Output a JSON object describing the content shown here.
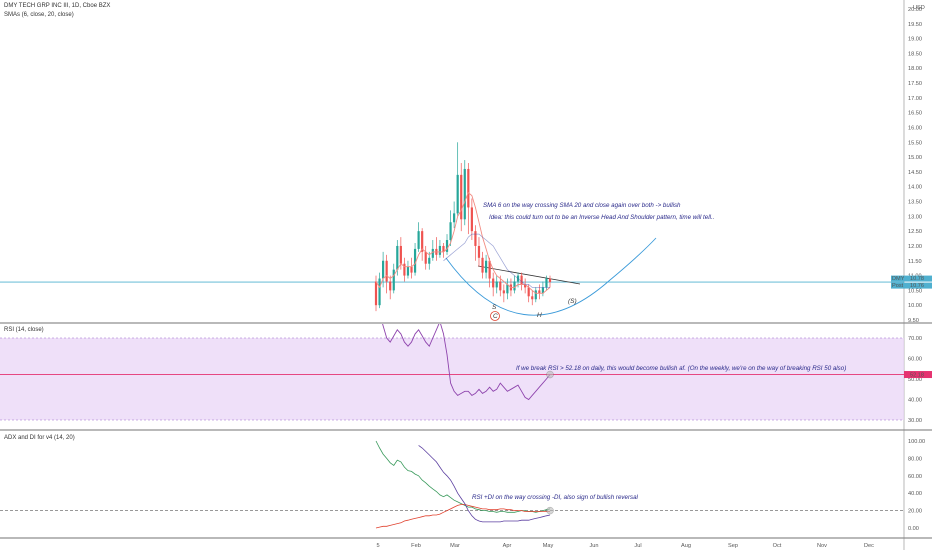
{
  "chart_data": [
    {
      "type": "line",
      "title": "DMY TECH GRP INC III, 1D, Cboe BZX",
      "subtitle": "SMAs (6, close, 20, close)",
      "currency": "USD",
      "ylim": [
        9.5,
        20.0
      ],
      "y_ticks": [
        "20.00",
        "19.50",
        "19.00",
        "18.50",
        "18.00",
        "17.50",
        "17.00",
        "16.50",
        "16.00",
        "15.50",
        "15.00",
        "14.50",
        "14.00",
        "13.50",
        "13.00",
        "12.50",
        "12.00",
        "11.50",
        "11.00",
        "10.50",
        "10.00",
        "9.50"
      ],
      "x_ticks": [
        "5",
        "Feb",
        "Mar",
        "Apr",
        "May",
        "Jun",
        "Jul",
        "Aug",
        "Sep",
        "Oct",
        "Nov",
        "Dec"
      ],
      "candles": [
        [
          10.8,
          10.0,
          11.0,
          9.8
        ],
        [
          10.0,
          10.9,
          11.1,
          9.9
        ],
        [
          10.9,
          11.5,
          11.8,
          10.6
        ],
        [
          11.5,
          10.8,
          11.7,
          10.4
        ],
        [
          10.8,
          10.5,
          11.0,
          10.2
        ],
        [
          10.5,
          11.2,
          11.4,
          10.4
        ],
        [
          11.2,
          12.0,
          12.2,
          11.0
        ],
        [
          12.0,
          11.4,
          12.3,
          11.2
        ],
        [
          11.4,
          11.0,
          11.6,
          10.8
        ],
        [
          11.0,
          11.3,
          11.5,
          10.9
        ],
        [
          11.3,
          11.1,
          11.6,
          10.9
        ],
        [
          11.1,
          11.9,
          12.1,
          11.0
        ],
        [
          11.9,
          12.5,
          12.8,
          11.8
        ],
        [
          12.5,
          11.8,
          12.6,
          11.5
        ],
        [
          11.8,
          11.4,
          12.0,
          11.2
        ],
        [
          11.4,
          11.6,
          11.8,
          11.2
        ],
        [
          11.6,
          11.9,
          12.2,
          11.5
        ],
        [
          11.9,
          11.7,
          12.3,
          11.5
        ],
        [
          11.7,
          12.0,
          12.2,
          11.6
        ],
        [
          12.0,
          11.8,
          12.1,
          11.6
        ],
        [
          11.8,
          12.2,
          12.4,
          11.7
        ],
        [
          12.2,
          12.8,
          13.2,
          12.0
        ],
        [
          12.8,
          13.1,
          13.5,
          12.6
        ],
        [
          13.1,
          14.4,
          15.5,
          13.0
        ],
        [
          14.4,
          12.9,
          14.8,
          12.5
        ],
        [
          12.9,
          14.6,
          14.9,
          12.7
        ],
        [
          14.6,
          13.3,
          14.8,
          12.4
        ],
        [
          13.3,
          12.5,
          13.6,
          12.2
        ],
        [
          12.5,
          12.0,
          12.7,
          11.5
        ],
        [
          12.0,
          11.6,
          12.3,
          11.3
        ],
        [
          11.6,
          11.1,
          11.8,
          10.9
        ],
        [
          11.1,
          11.5,
          11.7,
          10.9
        ],
        [
          11.5,
          10.9,
          11.6,
          10.6
        ],
        [
          10.9,
          10.6,
          11.1,
          10.3
        ],
        [
          10.6,
          10.8,
          11.0,
          10.4
        ],
        [
          10.8,
          10.5,
          11.0,
          10.3
        ],
        [
          10.5,
          10.4,
          10.7,
          10.1
        ],
        [
          10.4,
          10.7,
          10.9,
          10.2
        ],
        [
          10.7,
          10.5,
          10.9,
          10.3
        ],
        [
          10.5,
          10.8,
          11.0,
          10.4
        ],
        [
          10.8,
          11.0,
          11.1,
          10.6
        ],
        [
          11.0,
          10.7,
          11.1,
          10.5
        ],
        [
          10.7,
          10.6,
          10.9,
          10.4
        ],
        [
          10.6,
          10.3,
          10.7,
          10.1
        ],
        [
          10.3,
          10.2,
          10.5,
          10.0
        ],
        [
          10.2,
          10.5,
          10.6,
          10.1
        ],
        [
          10.5,
          10.4,
          10.7,
          10.2
        ],
        [
          10.4,
          10.6,
          10.8,
          10.3
        ],
        [
          10.6,
          10.9,
          11.0,
          10.5
        ],
        [
          10.9,
          10.78,
          11.0,
          10.6
        ]
      ],
      "sma6": [
        10.8,
        10.6,
        10.9,
        11.0,
        10.9,
        11.0,
        11.2,
        11.4,
        11.3,
        11.3,
        11.3,
        11.4,
        11.7,
        11.9,
        11.8,
        11.7,
        11.8,
        11.8,
        11.8,
        11.8,
        11.9,
        12.1,
        12.5,
        13.0,
        13.2,
        13.5,
        13.8,
        13.7,
        13.3,
        12.8,
        12.3,
        11.9,
        11.5,
        11.2,
        11.0,
        10.9,
        10.8,
        10.7,
        10.6,
        10.6,
        10.7,
        10.7,
        10.7,
        10.6,
        10.5,
        10.4,
        10.4,
        10.4,
        10.5,
        10.6
      ],
      "sma20": [
        null,
        null,
        null,
        null,
        null,
        null,
        null,
        null,
        null,
        null,
        null,
        null,
        null,
        null,
        null,
        null,
        null,
        null,
        null,
        11.5,
        11.6,
        11.7,
        11.8,
        11.9,
        12.0,
        12.1,
        12.3,
        12.4,
        12.4,
        12.4,
        12.3,
        12.2,
        12.1,
        12.0,
        11.8,
        11.6,
        11.4,
        11.2,
        11.1,
        11.0,
        10.9,
        10.8,
        10.7,
        10.7,
        10.6,
        10.6,
        10.6,
        10.6,
        10.6,
        10.6
      ],
      "horizontal_line": 10.78,
      "price_labels": [
        {
          "name": "DMYI",
          "value": "10.78"
        },
        {
          "name": "Post",
          "value": "10.76"
        }
      ],
      "annotations": [
        "SMA 6 on the way crossing SMA 20 and close again over both -> bullish",
        "Idea: this could turn out to be an Inverse Head And Shoulder pattern, time will tell..",
        "S",
        "H",
        "(S)",
        "C"
      ]
    },
    {
      "type": "line",
      "title": "RSI (14, close)",
      "ylim": [
        20,
        80
      ],
      "y_ticks": [
        "70.00",
        "60.00",
        "50.00",
        "40.00",
        "30.00"
      ],
      "band": [
        30,
        70
      ],
      "values": [
        84,
        82,
        76,
        70,
        68,
        71,
        74,
        72,
        68,
        66,
        68,
        72,
        74,
        71,
        68,
        66,
        70,
        74,
        78,
        72,
        62,
        48,
        44,
        42,
        43,
        44,
        44,
        42,
        43,
        45,
        43,
        44,
        46,
        44,
        45,
        48,
        46,
        44,
        45,
        46,
        47,
        44,
        41,
        40,
        42,
        44,
        46,
        48,
        50,
        52.18
      ],
      "horizontal_line": 52.18,
      "current_label": "52.18",
      "annotation": "If we break RSI > 52.18 on daily, this would become bullish af. (On the weekly, we're on the way of breaking RSI 50 also)"
    },
    {
      "type": "line",
      "title": "ADX and DI for v4 (14, 20)",
      "ylim": [
        -10,
        105
      ],
      "y_ticks": [
        "100.00",
        "80.00",
        "60.00",
        "40.00",
        "20.00",
        "0.00"
      ],
      "series": [
        {
          "name": "+DI",
          "color": "#3a9a5c",
          "values": [
            100,
            92,
            85,
            80,
            75,
            72,
            78,
            76,
            70,
            66,
            65,
            62,
            60,
            55,
            52,
            48,
            45,
            42,
            38,
            36,
            38,
            35,
            32,
            30,
            28,
            26,
            24,
            24,
            22,
            21,
            20,
            20,
            19,
            19,
            18,
            19,
            19,
            18,
            18,
            18,
            19,
            20,
            20,
            19,
            19,
            18,
            19,
            20,
            21,
            22
          ]
        },
        {
          "name": "-DI",
          "color": "#e0412e",
          "values": [
            0,
            1,
            2,
            2,
            3,
            4,
            5,
            6,
            8,
            9,
            10,
            11,
            12,
            13,
            14,
            14,
            15,
            15,
            16,
            18,
            20,
            22,
            24,
            26,
            27,
            27,
            26,
            25,
            24,
            23,
            22,
            22,
            21,
            21,
            21,
            22,
            22,
            21,
            21,
            20,
            20,
            20,
            19,
            19,
            19,
            19,
            19,
            19,
            19,
            19
          ]
        },
        {
          "name": "ADX",
          "color": "#5b3fa0",
          "values": [
            null,
            null,
            null,
            null,
            null,
            null,
            null,
            null,
            null,
            null,
            null,
            null,
            95,
            92,
            88,
            84,
            80,
            76,
            70,
            64,
            60,
            55,
            48,
            40,
            34,
            28,
            20,
            14,
            10,
            8,
            7,
            7,
            7,
            7,
            7,
            7,
            8,
            8,
            8,
            8,
            8,
            9,
            9,
            9,
            10,
            11,
            12,
            13,
            14,
            15
          ]
        }
      ],
      "horizontal_line": 20,
      "annotation": "RSI +DI on the way crossing -DI, also sign of bullish reversal"
    }
  ]
}
